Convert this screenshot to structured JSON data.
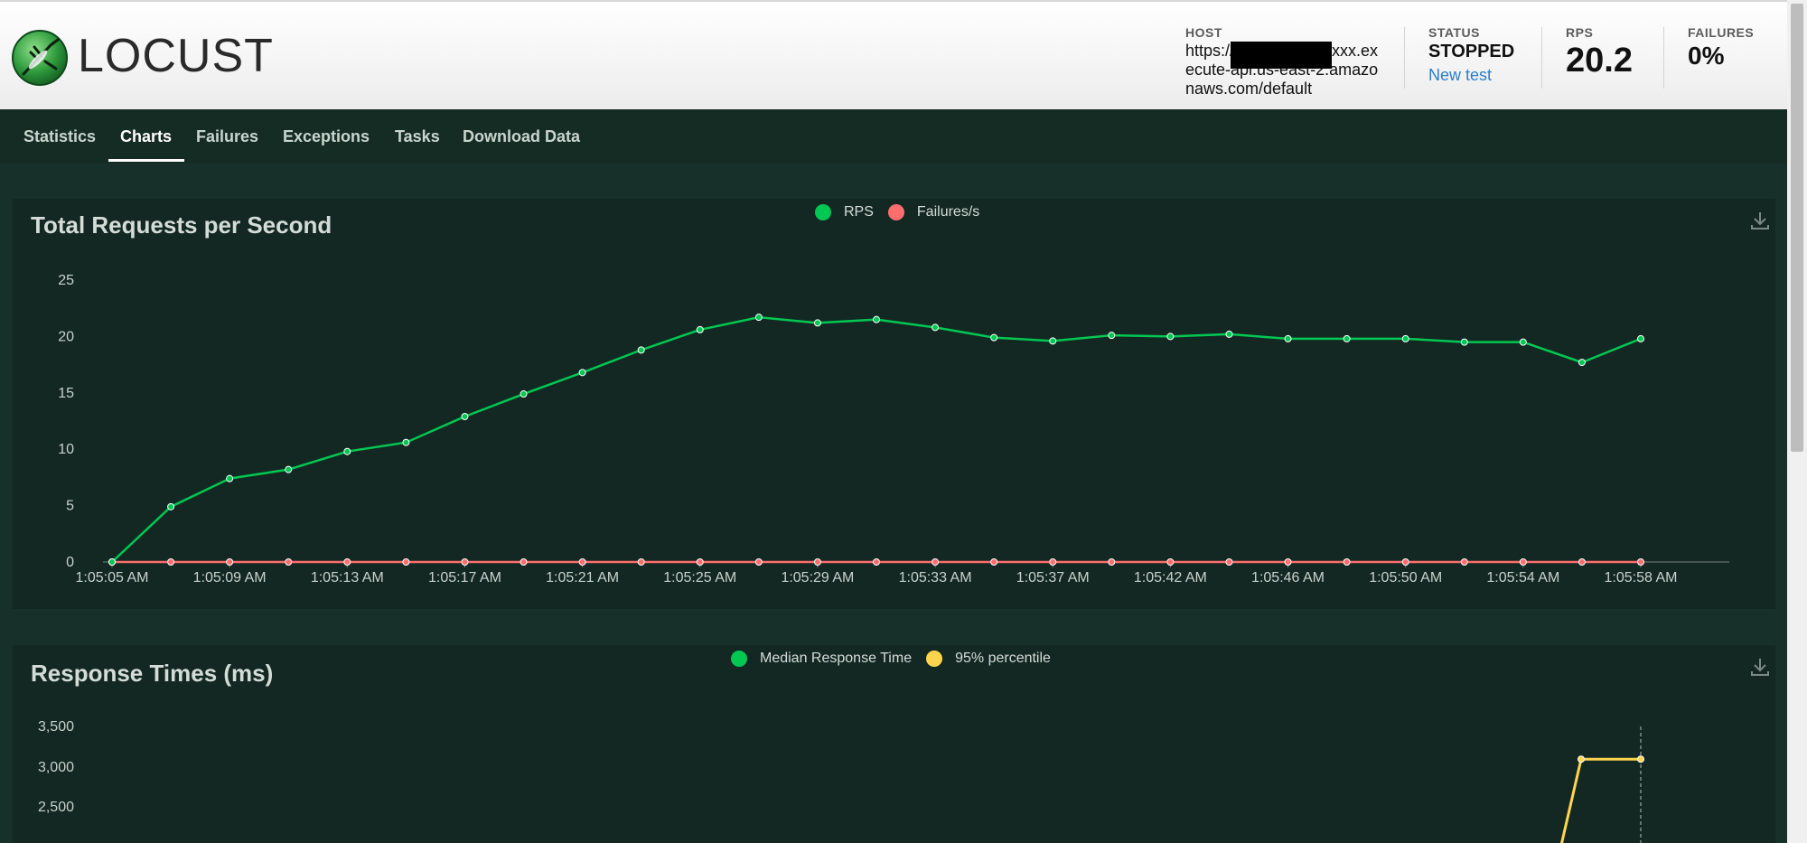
{
  "app": {
    "logo_text": "LOCUST"
  },
  "header": {
    "host_label": "HOST",
    "host_value": "https://xxxxxxxxxxxxxxx.execute-api.us-east-2.amazonaws.com/default",
    "status_label": "STATUS",
    "status_value": "STOPPED",
    "new_test_label": "New test",
    "rps_label": "RPS",
    "rps_value": "20.2",
    "failures_label": "FAILURES",
    "failures_value": "0%"
  },
  "tabs": [
    {
      "label": "Statistics",
      "active": false
    },
    {
      "label": "Charts",
      "active": true
    },
    {
      "label": "Failures",
      "active": false
    },
    {
      "label": "Exceptions",
      "active": false
    },
    {
      "label": "Tasks",
      "active": false
    },
    {
      "label": "Download Data",
      "active": false
    }
  ],
  "colors": {
    "rps": "#00c853",
    "failures": "#ff6d6d",
    "median": "#00c853",
    "p95": "#ffd54f"
  },
  "icons": [
    "download-icon",
    "locust-logo"
  ],
  "chart_data": [
    {
      "type": "line",
      "title": "Total Requests per Second",
      "x": [
        "1:05:05 AM",
        "1:05:07 AM",
        "1:05:09 AM",
        "1:05:11 AM",
        "1:05:13 AM",
        "1:05:15 AM",
        "1:05:17 AM",
        "1:05:19 AM",
        "1:05:21 AM",
        "1:05:23 AM",
        "1:05:25 AM",
        "1:05:27 AM",
        "1:05:29 AM",
        "1:05:31 AM",
        "1:05:33 AM",
        "1:05:35 AM",
        "1:05:37 AM",
        "1:05:40 AM",
        "1:05:42 AM",
        "1:05:44 AM",
        "1:05:46 AM",
        "1:05:48 AM",
        "1:05:50 AM",
        "1:05:52 AM",
        "1:05:54 AM",
        "1:05:56 AM",
        "1:05:58 AM"
      ],
      "x_tick_labels": [
        "1:05:05 AM",
        "1:05:09 AM",
        "1:05:13 AM",
        "1:05:17 AM",
        "1:05:21 AM",
        "1:05:25 AM",
        "1:05:29 AM",
        "1:05:33 AM",
        "1:05:37 AM",
        "1:05:42 AM",
        "1:05:46 AM",
        "1:05:50 AM",
        "1:05:54 AM",
        "1:05:58 AM"
      ],
      "series": [
        {
          "name": "RPS",
          "values": [
            0,
            4.9,
            7.4,
            8.2,
            9.8,
            10.6,
            12.9,
            14.9,
            16.8,
            18.8,
            20.6,
            21.7,
            21.2,
            21.5,
            20.8,
            19.9,
            19.6,
            20.1,
            20,
            20.2,
            19.8,
            19.8,
            19.8,
            19.5,
            19.5,
            17.7,
            19.8
          ]
        },
        {
          "name": "Failures/s",
          "values": [
            0,
            0,
            0,
            0,
            0,
            0,
            0,
            0,
            0,
            0,
            0,
            0,
            0,
            0,
            0,
            0,
            0,
            0,
            0,
            0,
            0,
            0,
            0,
            0,
            0,
            0,
            0
          ]
        }
      ],
      "y_ticks": [
        0,
        5,
        10,
        15,
        20,
        25
      ],
      "ylim": [
        0,
        25
      ],
      "legend": "top-center"
    },
    {
      "type": "line",
      "title": "Response Times (ms)",
      "series": [
        {
          "name": "Median Response Time",
          "values": []
        },
        {
          "name": "95% percentile",
          "values": [
            3100,
            3100
          ]
        }
      ],
      "y_tick_labels": [
        "3,500",
        "3,000",
        "2,500"
      ],
      "y_ticks": [
        3500,
        3000,
        2500
      ],
      "legend": "top-center"
    }
  ]
}
